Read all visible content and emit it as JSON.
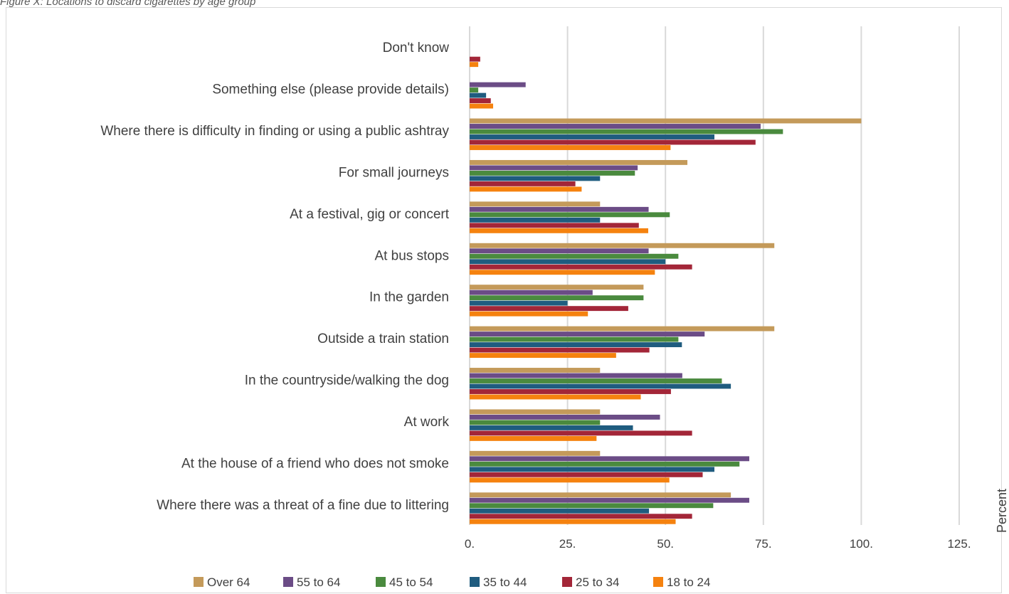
{
  "caption": "Figure X: Locations to discard cigarettes by age group",
  "chart_data": {
    "type": "bar",
    "orientation": "horizontal",
    "title": "",
    "xlabel": "Percent",
    "ylabel": "",
    "xlim": [
      0,
      125
    ],
    "x_ticks": [
      0,
      25,
      50,
      75,
      100,
      125
    ],
    "x_tick_labels": [
      "0.",
      "25.",
      "50.",
      "75.",
      "100.",
      "125."
    ],
    "grid": true,
    "legend_position": "bottom",
    "categories": [
      "Don't know",
      "Something else (please provide details)",
      "Where there is difficulty in finding or using a public ashtray",
      "For small journeys",
      "At a festival, gig or concert",
      "At bus stops",
      "In the garden",
      "Outside a train station",
      "In the countryside/walking the dog",
      "At work",
      "At the house of a friend who does not smoke",
      "Where there was a threat of a fine due to littering"
    ],
    "series": [
      {
        "name": "Over 64",
        "color": "#C49A5A",
        "values": [
          0,
          0,
          100,
          55.6,
          33.3,
          77.8,
          44.4,
          77.8,
          33.3,
          33.3,
          33.3,
          66.7
        ]
      },
      {
        "name": "55 to 64",
        "color": "#6B4C86",
        "values": [
          0,
          14.3,
          74.3,
          42.9,
          45.7,
          45.7,
          31.4,
          60,
          54.3,
          48.6,
          71.4,
          71.4
        ]
      },
      {
        "name": "45 to 54",
        "color": "#4A8A3E",
        "values": [
          0,
          2.2,
          80,
          42.2,
          51.1,
          53.3,
          44.4,
          53.3,
          64.4,
          33.3,
          68.9,
          62.2
        ]
      },
      {
        "name": "35 to 44",
        "color": "#1F5C7F",
        "values": [
          0,
          4.2,
          62.5,
          33.3,
          33.3,
          50,
          25,
          54.2,
          66.7,
          41.7,
          62.5,
          45.8
        ]
      },
      {
        "name": "25 to 34",
        "color": "#A32638",
        "values": [
          2.7,
          5.4,
          73,
          27,
          43.2,
          56.8,
          40.5,
          45.9,
          51.4,
          56.8,
          59.5,
          56.8
        ]
      },
      {
        "name": "18 to 24",
        "color": "#F5820F",
        "values": [
          2.2,
          6,
          51.3,
          28.6,
          45.6,
          47.3,
          30.2,
          37.4,
          43.7,
          32.4,
          51,
          52.6
        ]
      }
    ]
  }
}
